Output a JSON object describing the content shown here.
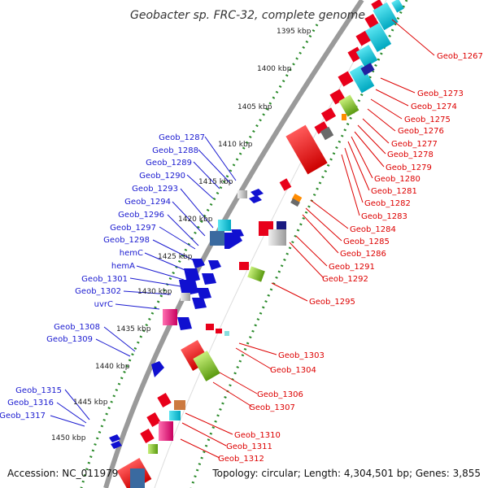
{
  "title": "Geobacter sp. FRC-32, complete genome",
  "accession": "Accession: NC_011979",
  "topology": "Topology: circular; Length: 4,304,501 bp; Genes: 3,855",
  "colors": {
    "left_labels": "#1a1ad0",
    "right_labels": "#dd0000",
    "backbone": "#8a8a8a",
    "ticks": "#2a8a2a"
  },
  "scale_labels": [
    "1395 kbp",
    "1400 kbp",
    "1405 kbp",
    "1410 kbp",
    "1415 kbp",
    "1420 kbp",
    "1425 kbp",
    "1430 kbp",
    "1435 kbp",
    "1440 kbp",
    "1445 kbp",
    "1450 kbp"
  ],
  "left_genes": [
    "Geob_1287",
    "Geob_1288",
    "Geob_1289",
    "Geob_1290",
    "Geob_1293",
    "Geob_1294",
    "Geob_1296",
    "Geob_1297",
    "Geob_1298",
    "hemC",
    "hemA",
    "Geob_1301",
    "Geob_1302",
    "uvrC",
    "Geob_1308",
    "Geob_1309",
    "Geob_1315",
    "Geob_1316",
    "Geob_1317"
  ],
  "right_genes": [
    "Geob_1267",
    "Geob_1273",
    "Geob_1274",
    "Geob_1275",
    "Geob_1276",
    "Geob_1277",
    "Geob_1278",
    "Geob_1279",
    "Geob_1280",
    "Geob_1281",
    "Geob_1282",
    "Geob_1283",
    "Geob_1284",
    "Geob_1285",
    "Geob_1286",
    "Geob_1291",
    "Geob_1292",
    "Geob_1295",
    "Geob_1303",
    "Geob_1304",
    "Geob_1306",
    "Geob_1307",
    "Geob_1310",
    "Geob_1311",
    "Geob_1312"
  ]
}
